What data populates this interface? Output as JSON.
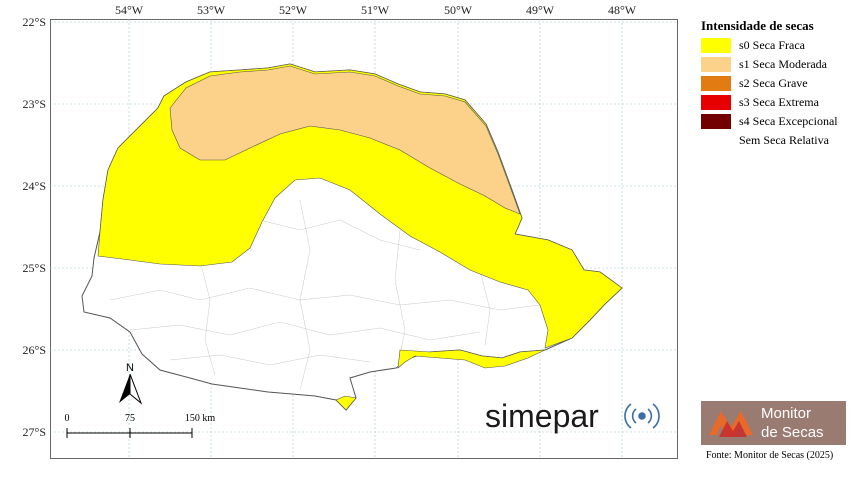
{
  "map": {
    "lon_ticks": [
      "54°W",
      "53°W",
      "52°W",
      "51°W",
      "50°W",
      "49°W",
      "48°W"
    ],
    "lat_ticks": [
      "22°S",
      "23°S",
      "24°S",
      "25°S",
      "26°S",
      "27°S"
    ],
    "north_label": "N",
    "scale_labels": [
      "0",
      "75",
      "150 km"
    ]
  },
  "legend": {
    "title": "Intensidade de secas",
    "items": [
      {
        "label": "s0 Seca Fraca",
        "color": "#ffff00"
      },
      {
        "label": "s1 Seca Moderada",
        "color": "#fcd28a"
      },
      {
        "label": "s2 Seca Grave",
        "color": "#e27b12"
      },
      {
        "label": "s3 Seca Extrema",
        "color": "#e60000"
      },
      {
        "label": "s4 Seca Excepcional",
        "color": "#730000"
      },
      {
        "label": "Sem Seca Relativa",
        "color": "#ffffff"
      }
    ]
  },
  "branding": {
    "simepar": "simepar",
    "monitor_line1": "Monitor",
    "monitor_line2": "de Secas",
    "source": "Fonte: Monitor de Secas (2025)"
  }
}
